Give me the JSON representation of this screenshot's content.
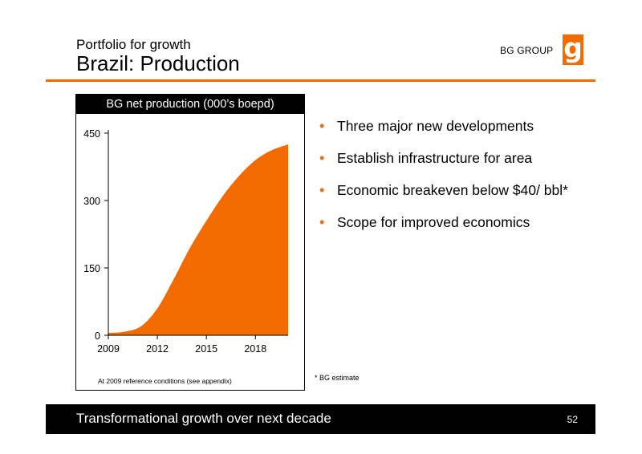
{
  "header": {
    "subtitle": "Portfolio for growth",
    "title": "Brazil: Production",
    "brand_text": "BG GROUP",
    "logo_glyph": "g"
  },
  "chart": {
    "header": "BG net production (000’s boepd)",
    "note": "At 2009 reference conditions (see appendix)"
  },
  "chart_data": {
    "type": "area",
    "title": "BG net production (000’s boepd)",
    "xlabel": "",
    "ylabel": "",
    "x": [
      2009,
      2010,
      2011,
      2012,
      2013,
      2014,
      2015,
      2016,
      2017,
      2018,
      2019,
      2020
    ],
    "values": [
      5,
      8,
      20,
      60,
      125,
      195,
      255,
      310,
      355,
      390,
      412,
      425
    ],
    "x_ticks": [
      "2009",
      "2012",
      "2015",
      "2018"
    ],
    "y_ticks": [
      "0",
      "150",
      "300",
      "450"
    ],
    "xlim": [
      2009,
      2020
    ],
    "ylim": [
      0,
      450
    ],
    "color": "#f26a00",
    "grid": false,
    "legend": "none"
  },
  "bullets": [
    "Three major new developments",
    "Establish infrastructure for area",
    "Economic breakeven below $40/ bbl*",
    "Scope for improved economics"
  ],
  "bullet_glyph": "•",
  "footnote": "* BG estimate",
  "footer": {
    "text": "Transformational growth over next decade",
    "page": "52"
  },
  "colors": {
    "accent": "#f26a00",
    "footer_bg": "#000000"
  }
}
